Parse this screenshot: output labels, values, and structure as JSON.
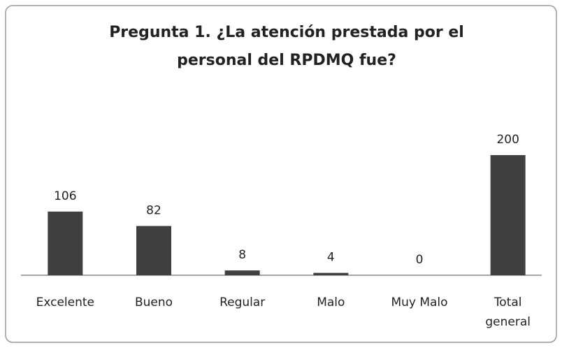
{
  "chart_data": {
    "type": "bar",
    "title": "Pregunta 1. ¿La atención prestada por el personal del RPDMQ fue?",
    "categories": [
      "Excelente",
      "Bueno",
      "Regular",
      "Malo",
      "Muy Malo",
      "Total general"
    ],
    "values": [
      106,
      82,
      8,
      4,
      0,
      200
    ],
    "color": "#404040"
  }
}
